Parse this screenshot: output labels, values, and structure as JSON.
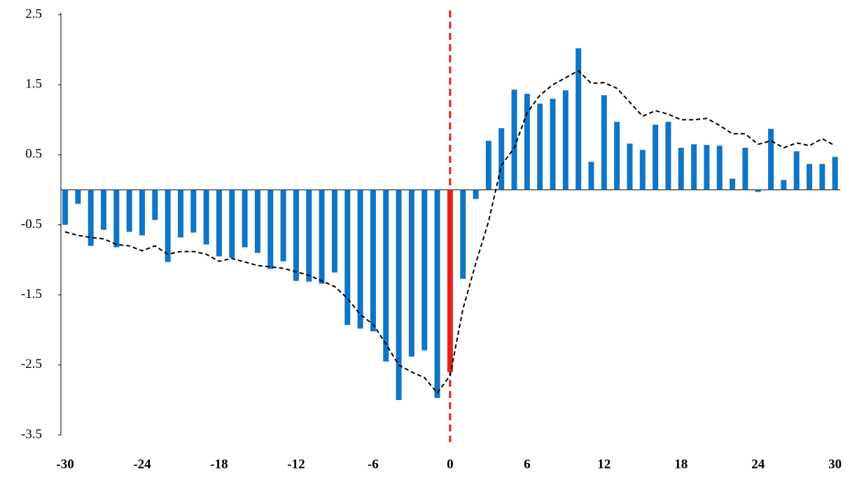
{
  "chart_data": {
    "type": "bar_line",
    "x": [
      -30,
      -29,
      -28,
      -27,
      -26,
      -25,
      -24,
      -23,
      -22,
      -21,
      -20,
      -19,
      -18,
      -17,
      -16,
      -15,
      -14,
      -13,
      -12,
      -11,
      -10,
      -9,
      -8,
      -7,
      -6,
      -5,
      -4,
      -3,
      -2,
      -1,
      0,
      1,
      2,
      3,
      4,
      5,
      6,
      7,
      8,
      9,
      10,
      11,
      12,
      13,
      14,
      15,
      16,
      17,
      18,
      19,
      20,
      21,
      22,
      23,
      24,
      25,
      26,
      27,
      28,
      29,
      30
    ],
    "series": [
      {
        "kind": "bar",
        "color": "#0f75c6",
        "values": [
          -0.5,
          -0.2,
          -0.8,
          -0.57,
          -0.82,
          -0.6,
          -0.65,
          -0.43,
          -1.03,
          -0.68,
          -0.61,
          -0.78,
          -0.95,
          -0.97,
          -0.82,
          -0.9,
          -1.13,
          -1.02,
          -1.3,
          -1.31,
          -1.34,
          -1.18,
          -1.93,
          -1.98,
          -2.02,
          -2.45,
          -3.0,
          -2.38,
          -2.29,
          -2.97,
          -2.6,
          -1.27,
          -0.13,
          0.7,
          0.88,
          1.43,
          1.37,
          1.23,
          1.3,
          1.42,
          2.02,
          0.4,
          1.35,
          0.97,
          0.66,
          0.57,
          0.93,
          0.97,
          0.6,
          0.65,
          0.64,
          0.63,
          0.16,
          0.6,
          -0.03,
          0.87,
          0.14,
          0.55,
          0.37,
          0.37,
          0.47
        ]
      },
      {
        "kind": "line",
        "color": "#000000",
        "dashed": true,
        "values": [
          -0.6,
          -0.65,
          -0.68,
          -0.7,
          -0.78,
          -0.8,
          -0.87,
          -0.8,
          -0.92,
          -0.88,
          -0.88,
          -0.92,
          -1.02,
          -0.98,
          -1.03,
          -1.08,
          -1.1,
          -1.12,
          -1.17,
          -1.22,
          -1.3,
          -1.38,
          -1.55,
          -1.78,
          -1.92,
          -2.2,
          -2.5,
          -2.6,
          -2.68,
          -2.9,
          -2.65,
          -1.7,
          -1.05,
          -0.45,
          0.35,
          0.6,
          1.1,
          1.35,
          1.5,
          1.6,
          1.7,
          1.52,
          1.53,
          1.45,
          1.25,
          1.05,
          1.13,
          1.08,
          1.0,
          1.0,
          1.02,
          0.92,
          0.8,
          0.8,
          0.65,
          0.7,
          0.6,
          0.67,
          0.63,
          0.73,
          0.63
        ]
      }
    ],
    "marker": {
      "x": 0,
      "color": "#e8201c"
    },
    "xlim": [
      -30.33,
      30.4
    ],
    "xticks": [
      -30,
      -24,
      -18,
      -12,
      -6,
      0,
      6,
      12,
      18,
      24,
      30
    ],
    "ylim": [
      -3.5,
      2.5
    ],
    "yticks": [
      -3.5,
      -2.5,
      -1.5,
      -0.5,
      0.5,
      1.5,
      2.5
    ]
  }
}
